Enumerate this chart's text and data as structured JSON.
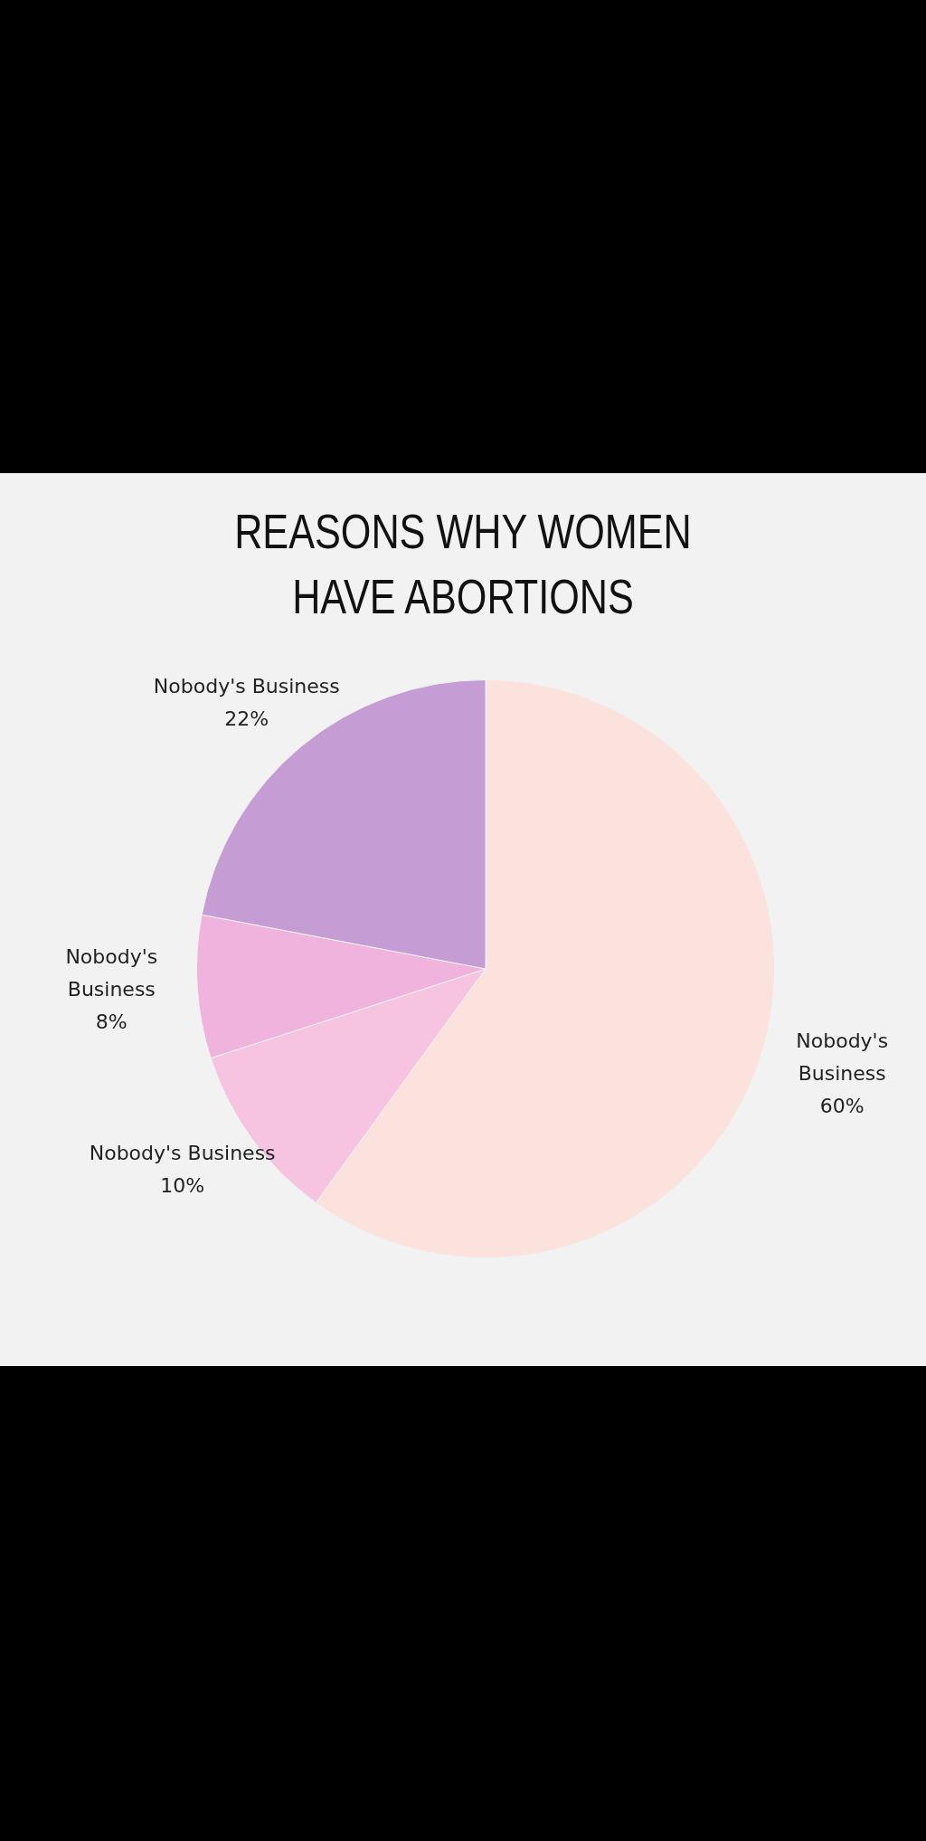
{
  "chart_data": {
    "type": "pie",
    "title": "REASONS WHY WOMEN HAVE ABORTIONS",
    "categories": [
      "Nobody's Business",
      "Nobody's Business",
      "Nobody's Business",
      "Nobody's Business"
    ],
    "values": [
      60,
      10,
      8,
      22
    ],
    "value_labels": [
      "60%",
      "10%",
      "8%",
      "22%"
    ],
    "colors": [
      "#fbe2dc",
      "#f6c4e0",
      "#efb3de",
      "#c59dd4"
    ],
    "legend": false
  }
}
